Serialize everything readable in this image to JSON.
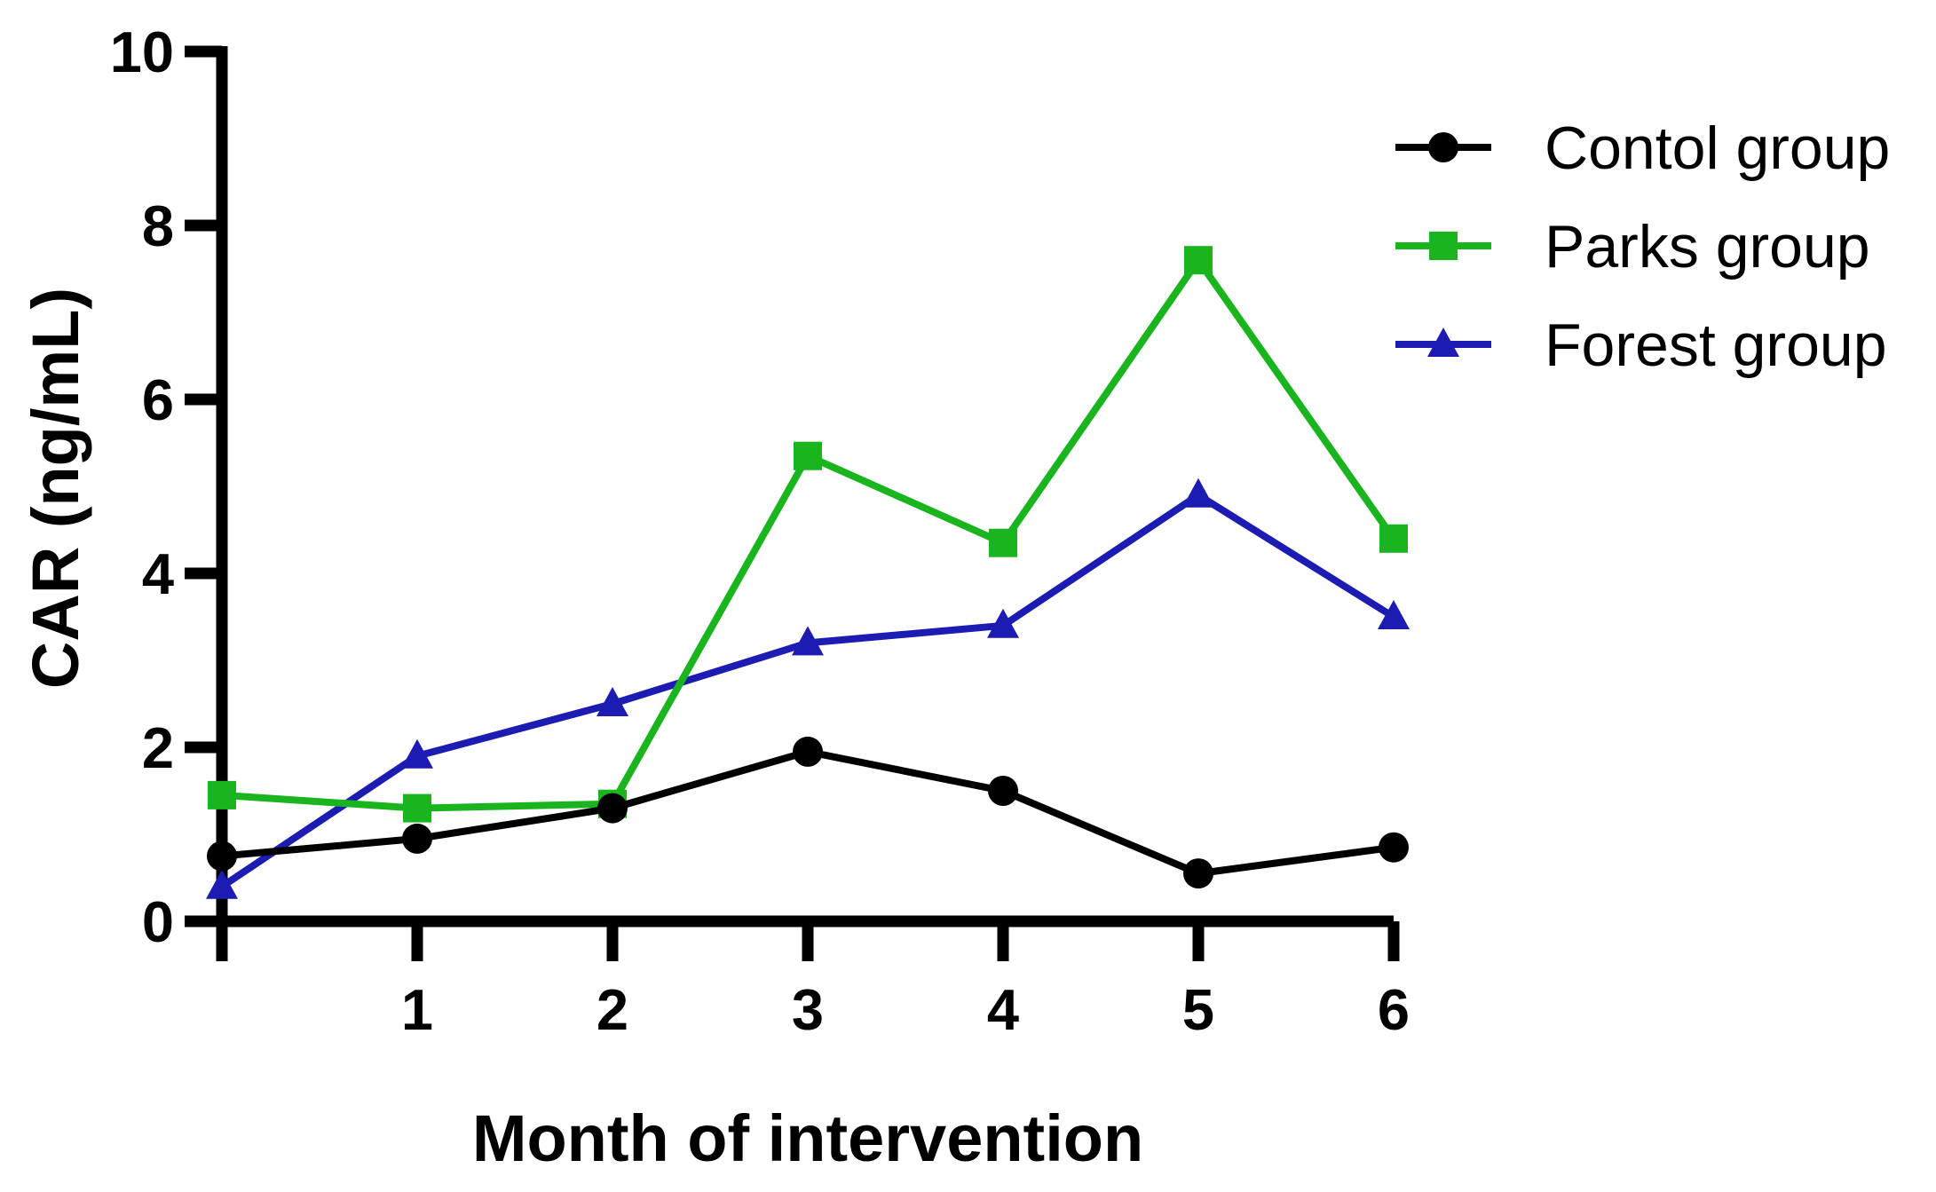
{
  "chart_data": {
    "type": "line",
    "title": "",
    "xlabel": "Month of intervention",
    "ylabel": "CAR (ng/mL)",
    "x": [
      0,
      1,
      2,
      3,
      4,
      5,
      6
    ],
    "xlim": [
      0,
      6
    ],
    "ylim": [
      0,
      10
    ],
    "y_ticks": [
      0,
      2,
      4,
      6,
      8,
      10
    ],
    "x_tick_labels": [
      "1",
      "2",
      "3",
      "4",
      "5",
      "6"
    ],
    "grid": false,
    "legend_position": "top-right",
    "background_color": "#FFFFFF",
    "axis_color": "#000000",
    "series": [
      {
        "name": "Contol group",
        "color": "#000000",
        "marker": "circle",
        "values": [
          0.75,
          0.95,
          1.3,
          1.95,
          1.5,
          0.55,
          0.85
        ]
      },
      {
        "name": "Parks group",
        "color": "#1AB51E",
        "marker": "square",
        "values": [
          1.45,
          1.3,
          1.35,
          5.35,
          4.35,
          7.6,
          4.4
        ]
      },
      {
        "name": "Forest group",
        "color": "#1C1CB2",
        "marker": "triangle",
        "values": [
          0.4,
          1.9,
          2.5,
          3.2,
          3.4,
          4.9,
          3.5
        ]
      }
    ]
  }
}
